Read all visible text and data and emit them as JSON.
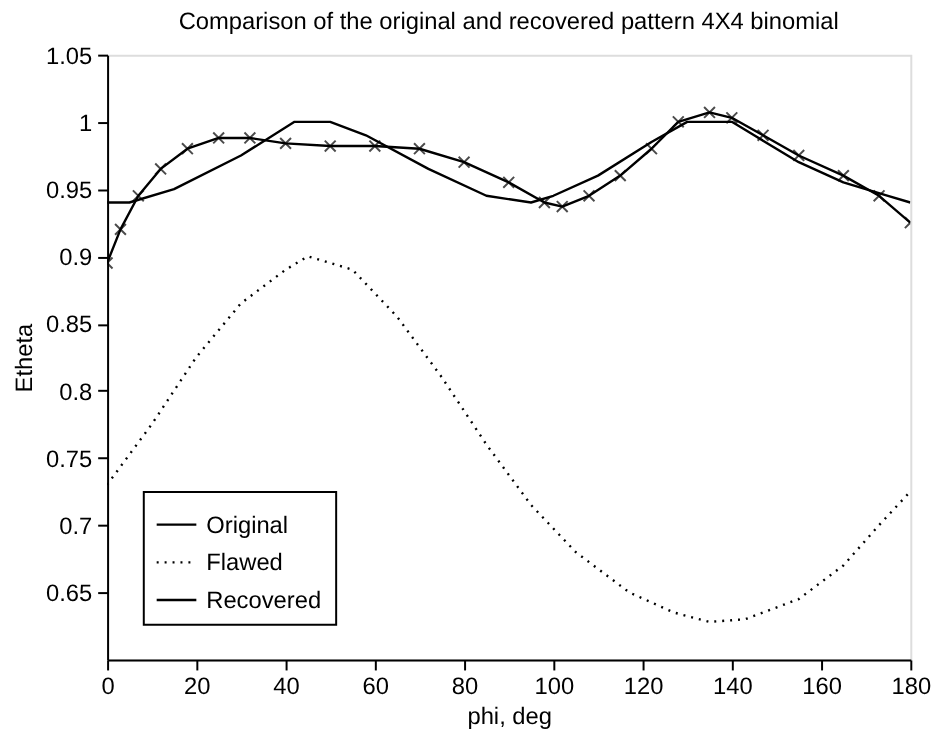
{
  "chart_data": {
    "type": "line",
    "title": "Comparison of the original and recovered pattern 4X4 binomial",
    "xlabel": "phi, deg",
    "ylabel": "Etheta",
    "xlim": [
      0,
      180
    ],
    "xticks": [
      0,
      20,
      40,
      60,
      80,
      100,
      120,
      140,
      160,
      180
    ],
    "ylim": [
      0.6,
      1.05
    ],
    "yticks": [
      0.65,
      {
        "value": 0.7,
        "label": "0.7"
      },
      0.75,
      {
        "value": 0.8,
        "label": "0.8"
      },
      0.85,
      {
        "value": 0.9,
        "label": "0.9"
      },
      0.95,
      1,
      1.05
    ],
    "grid": false,
    "legend": "bottom left",
    "series": [
      {
        "name": "Original",
        "color": "#000000",
        "line_style": "solid",
        "marker": "none",
        "x": [
          0,
          5,
          15,
          30,
          42,
          50,
          58,
          72,
          85,
          95,
          100,
          110,
          122,
          130,
          140,
          145,
          155,
          165,
          175,
          180
        ],
        "values": [
          0.94,
          0.94,
          0.95,
          0.975,
          1.0,
          1.0,
          0.99,
          0.965,
          0.945,
          0.94,
          0.945,
          0.96,
          0.985,
          1.0,
          1.0,
          0.99,
          0.97,
          0.955,
          0.945,
          0.94
        ]
      },
      {
        "name": "Flawed",
        "color": "#000000",
        "line_style": "dotted",
        "marker": "none",
        "x": [
          0,
          10,
          20,
          30,
          40,
          45,
          55,
          65,
          75,
          85,
          95,
          105,
          117,
          127,
          135,
          143,
          155,
          165,
          173,
          180
        ],
        "values": [
          0.73,
          0.775,
          0.825,
          0.865,
          0.89,
          0.9,
          0.89,
          0.855,
          0.81,
          0.76,
          0.715,
          0.68,
          0.65,
          0.635,
          0.628,
          0.63,
          0.645,
          0.67,
          0.7,
          0.725
        ]
      },
      {
        "name": "Recovered",
        "color": "#000000",
        "line_style": "solid",
        "marker": "cross",
        "x": [
          0,
          3,
          7,
          12,
          18,
          25,
          32,
          40,
          50,
          60,
          70,
          80,
          90,
          98,
          102,
          108,
          115,
          122,
          128,
          135,
          140,
          147,
          155,
          165,
          173,
          180
        ],
        "values": [
          0.895,
          0.92,
          0.945,
          0.965,
          0.98,
          0.988,
          0.988,
          0.984,
          0.982,
          0.982,
          0.98,
          0.97,
          0.955,
          0.94,
          0.937,
          0.945,
          0.96,
          0.98,
          1.0,
          1.007,
          1.003,
          0.99,
          0.975,
          0.96,
          0.945,
          0.925
        ]
      }
    ]
  }
}
